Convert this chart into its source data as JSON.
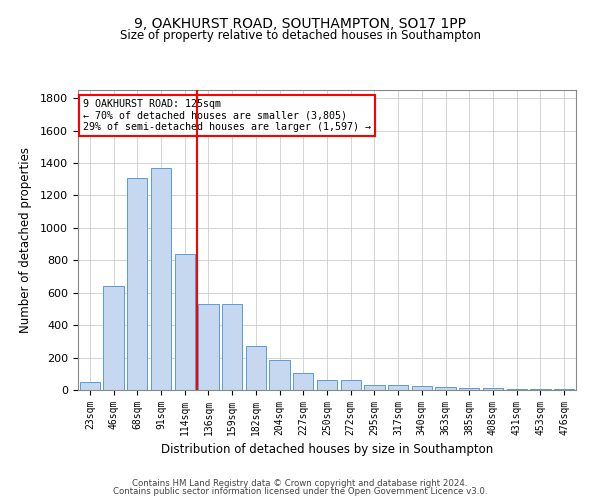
{
  "title1": "9, OAKHURST ROAD, SOUTHAMPTON, SO17 1PP",
  "title2": "Size of property relative to detached houses in Southampton",
  "xlabel": "Distribution of detached houses by size in Southampton",
  "ylabel": "Number of detached properties",
  "categories": [
    "23sqm",
    "46sqm",
    "68sqm",
    "91sqm",
    "114sqm",
    "136sqm",
    "159sqm",
    "182sqm",
    "204sqm",
    "227sqm",
    "250sqm",
    "272sqm",
    "295sqm",
    "317sqm",
    "340sqm",
    "363sqm",
    "385sqm",
    "408sqm",
    "431sqm",
    "453sqm",
    "476sqm"
  ],
  "values": [
    50,
    640,
    1310,
    1370,
    840,
    530,
    530,
    270,
    185,
    105,
    60,
    60,
    30,
    30,
    25,
    20,
    15,
    10,
    5,
    5,
    5
  ],
  "bar_color": "#c5d8f0",
  "bar_edge_color": "#5b9bd5",
  "annotation_line1": "9 OAKHURST ROAD: 125sqm",
  "annotation_line2": "← 70% of detached houses are smaller (3,805)",
  "annotation_line3": "29% of semi-detached houses are larger (1,597) →",
  "annotation_box_color": "white",
  "annotation_box_edge_color": "red",
  "marker_line_color": "red",
  "ylim": [
    0,
    1850
  ],
  "yticks": [
    0,
    200,
    400,
    600,
    800,
    1000,
    1200,
    1400,
    1600,
    1800
  ],
  "grid_color": "#cccccc",
  "background_color": "white",
  "footer1": "Contains HM Land Registry data © Crown copyright and database right 2024.",
  "footer2": "Contains public sector information licensed under the Open Government Licence v3.0.",
  "fig_width": 6.0,
  "fig_height": 5.0,
  "dpi": 100
}
